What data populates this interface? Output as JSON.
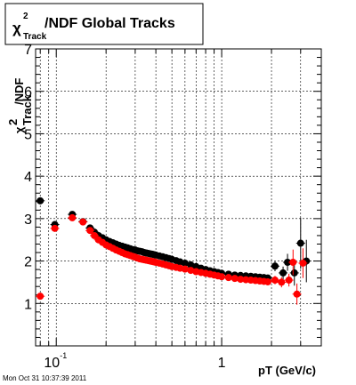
{
  "page": {
    "title_symbol": "χ",
    "title_sup": "2",
    "title_sub": "Track",
    "title_rest": "/NDF  Global Tracks",
    "footer": "Mon Oct 31 10:37:39 2011"
  },
  "chart_data": {
    "type": "scatter",
    "title": "χ²Track/NDF  Global Tracks",
    "xlabel": "pT (GeV/c)",
    "ylabel": "χ²Track/NDF",
    "x_scale": "log",
    "xlim": [
      0.075,
      4.0
    ],
    "ylim": [
      0,
      7
    ],
    "grid": true,
    "x_tick_labels": [
      {
        "value": 0.1,
        "base": "10",
        "exp": "-1"
      },
      {
        "value": 1,
        "base": "1",
        "exp": ""
      }
    ],
    "y_ticks": [
      1,
      2,
      3,
      4,
      5,
      6,
      7
    ],
    "series": [
      {
        "color": "#000000",
        "points": [
          {
            "x": 0.08,
            "y": 3.42
          },
          {
            "x": 0.098,
            "y": 2.86
          },
          {
            "x": 0.125,
            "y": 3.1
          },
          {
            "x": 0.145,
            "y": 2.93
          },
          {
            "x": 0.16,
            "y": 2.78
          },
          {
            "x": 0.17,
            "y": 2.68
          },
          {
            "x": 0.18,
            "y": 2.6
          },
          {
            "x": 0.19,
            "y": 2.55
          },
          {
            "x": 0.2,
            "y": 2.5
          },
          {
            "x": 0.21,
            "y": 2.46
          },
          {
            "x": 0.22,
            "y": 2.43
          },
          {
            "x": 0.23,
            "y": 2.4
          },
          {
            "x": 0.24,
            "y": 2.37
          },
          {
            "x": 0.25,
            "y": 2.35
          },
          {
            "x": 0.26,
            "y": 2.33
          },
          {
            "x": 0.27,
            "y": 2.31
          },
          {
            "x": 0.28,
            "y": 2.29
          },
          {
            "x": 0.29,
            "y": 2.27
          },
          {
            "x": 0.3,
            "y": 2.26
          },
          {
            "x": 0.31,
            "y": 2.24
          },
          {
            "x": 0.32,
            "y": 2.23
          },
          {
            "x": 0.33,
            "y": 2.22
          },
          {
            "x": 0.34,
            "y": 2.2
          },
          {
            "x": 0.35,
            "y": 2.19
          },
          {
            "x": 0.36,
            "y": 2.18
          },
          {
            "x": 0.37,
            "y": 2.17
          },
          {
            "x": 0.38,
            "y": 2.16
          },
          {
            "x": 0.39,
            "y": 2.15
          },
          {
            "x": 0.4,
            "y": 2.14
          },
          {
            "x": 0.42,
            "y": 2.12
          },
          {
            "x": 0.44,
            "y": 2.1
          },
          {
            "x": 0.46,
            "y": 2.08
          },
          {
            "x": 0.48,
            "y": 2.06
          },
          {
            "x": 0.5,
            "y": 2.04
          },
          {
            "x": 0.53,
            "y": 2.01
          },
          {
            "x": 0.56,
            "y": 1.98
          },
          {
            "x": 0.6,
            "y": 1.95
          },
          {
            "x": 0.65,
            "y": 1.91
          },
          {
            "x": 0.7,
            "y": 1.87
          },
          {
            "x": 0.75,
            "y": 1.83
          },
          {
            "x": 0.8,
            "y": 1.8
          },
          {
            "x": 0.85,
            "y": 1.77
          },
          {
            "x": 0.9,
            "y": 1.75
          },
          {
            "x": 0.95,
            "y": 1.73
          },
          {
            "x": 1.0,
            "y": 1.71
          },
          {
            "x": 1.1,
            "y": 1.69
          },
          {
            "x": 1.2,
            "y": 1.67
          },
          {
            "x": 1.3,
            "y": 1.66
          },
          {
            "x": 1.4,
            "y": 1.65
          },
          {
            "x": 1.5,
            "y": 1.64
          },
          {
            "x": 1.6,
            "y": 1.63
          },
          {
            "x": 1.7,
            "y": 1.62
          },
          {
            "x": 1.8,
            "y": 1.61
          },
          {
            "x": 1.9,
            "y": 1.6
          },
          {
            "x": 2.1,
            "y": 1.88,
            "err": 0.12
          },
          {
            "x": 2.35,
            "y": 1.72,
            "err": 0.15
          },
          {
            "x": 2.5,
            "y": 1.97,
            "err": 0.2
          },
          {
            "x": 2.75,
            "y": 1.72,
            "err": 0.3
          },
          {
            "x": 3.0,
            "y": 2.42,
            "err": 0.6
          },
          {
            "x": 3.25,
            "y": 2.0,
            "err": 0.5
          }
        ]
      },
      {
        "color": "#ff0000",
        "points": [
          {
            "x": 0.08,
            "y": 1.17
          },
          {
            "x": 0.098,
            "y": 2.77
          },
          {
            "x": 0.125,
            "y": 3.02
          },
          {
            "x": 0.145,
            "y": 2.92
          },
          {
            "x": 0.16,
            "y": 2.72
          },
          {
            "x": 0.17,
            "y": 2.6
          },
          {
            "x": 0.18,
            "y": 2.5
          },
          {
            "x": 0.19,
            "y": 2.44
          },
          {
            "x": 0.2,
            "y": 2.38
          },
          {
            "x": 0.21,
            "y": 2.34
          },
          {
            "x": 0.22,
            "y": 2.3
          },
          {
            "x": 0.23,
            "y": 2.26
          },
          {
            "x": 0.24,
            "y": 2.23
          },
          {
            "x": 0.25,
            "y": 2.2
          },
          {
            "x": 0.26,
            "y": 2.17
          },
          {
            "x": 0.27,
            "y": 2.15
          },
          {
            "x": 0.28,
            "y": 2.13
          },
          {
            "x": 0.29,
            "y": 2.11
          },
          {
            "x": 0.3,
            "y": 2.09
          },
          {
            "x": 0.31,
            "y": 2.07
          },
          {
            "x": 0.32,
            "y": 2.05
          },
          {
            "x": 0.33,
            "y": 2.04
          },
          {
            "x": 0.34,
            "y": 2.03
          },
          {
            "x": 0.35,
            "y": 2.02
          },
          {
            "x": 0.36,
            "y": 2.01
          },
          {
            "x": 0.37,
            "y": 2.0
          },
          {
            "x": 0.38,
            "y": 1.99
          },
          {
            "x": 0.39,
            "y": 1.98
          },
          {
            "x": 0.4,
            "y": 1.97
          },
          {
            "x": 0.42,
            "y": 1.95
          },
          {
            "x": 0.44,
            "y": 1.93
          },
          {
            "x": 0.46,
            "y": 1.91
          },
          {
            "x": 0.48,
            "y": 1.89
          },
          {
            "x": 0.5,
            "y": 1.87
          },
          {
            "x": 0.53,
            "y": 1.85
          },
          {
            "x": 0.56,
            "y": 1.83
          },
          {
            "x": 0.6,
            "y": 1.81
          },
          {
            "x": 0.65,
            "y": 1.78
          },
          {
            "x": 0.7,
            "y": 1.75
          },
          {
            "x": 0.75,
            "y": 1.73
          },
          {
            "x": 0.8,
            "y": 1.71
          },
          {
            "x": 0.85,
            "y": 1.69
          },
          {
            "x": 0.9,
            "y": 1.67
          },
          {
            "x": 0.95,
            "y": 1.65
          },
          {
            "x": 1.0,
            "y": 1.63
          },
          {
            "x": 1.1,
            "y": 1.61
          },
          {
            "x": 1.2,
            "y": 1.59
          },
          {
            "x": 1.3,
            "y": 1.57
          },
          {
            "x": 1.4,
            "y": 1.56
          },
          {
            "x": 1.5,
            "y": 1.55
          },
          {
            "x": 1.6,
            "y": 1.54
          },
          {
            "x": 1.7,
            "y": 1.53
          },
          {
            "x": 1.8,
            "y": 1.52
          },
          {
            "x": 1.9,
            "y": 1.51
          },
          {
            "x": 2.1,
            "y": 1.55,
            "err": 0.1
          },
          {
            "x": 2.3,
            "y": 1.5,
            "err": 0.12
          },
          {
            "x": 2.55,
            "y": 1.55,
            "err": 0.15
          },
          {
            "x": 2.7,
            "y": 1.97,
            "err": 0.3
          },
          {
            "x": 2.85,
            "y": 1.22,
            "err": 0.25
          },
          {
            "x": 3.1,
            "y": 1.95,
            "err": 0.35
          }
        ]
      }
    ]
  }
}
